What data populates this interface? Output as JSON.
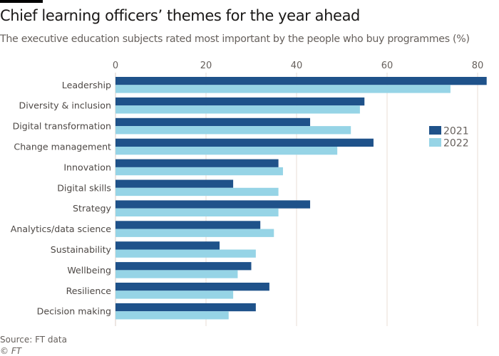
{
  "header": {
    "title": "Chief learning officers’ themes for the year ahead",
    "subtitle": "The executive education subjects rated most important by the people who buy programmes (%)"
  },
  "footer": {
    "source": "Source: FT data",
    "copyright": "© FT"
  },
  "colors": {
    "series_2021": "#1f528a",
    "series_2022": "#96d4e6",
    "gridline": "#e9dcd6",
    "text": "#66605c"
  },
  "chart_data": {
    "type": "bar",
    "orientation": "horizontal",
    "title": "Chief learning officers’ themes for the year ahead",
    "subtitle": "The executive education subjects rated most important by the people who buy programmes (%)",
    "xlabel": "",
    "ylabel": "",
    "xlim": [
      0,
      82
    ],
    "xticks": [
      0,
      20,
      40,
      60,
      80
    ],
    "xtick_labels": [
      "0",
      "20",
      "40",
      "60",
      "80"
    ],
    "grid": true,
    "legend_position": "right",
    "categories": [
      "Leadership",
      "Diversity & inclusion",
      "Digital transformation",
      "Change management",
      "Innovation",
      "Digital skills",
      "Strategy",
      "Analytics/data science",
      "Sustainability",
      "Wellbeing",
      "Resilience",
      "Decision making"
    ],
    "series": [
      {
        "name": "2021",
        "color": "#1f528a",
        "values": [
          82,
          55,
          43,
          57,
          36,
          26,
          43,
          32,
          23,
          30,
          34,
          31
        ]
      },
      {
        "name": "2022",
        "color": "#96d4e6",
        "values": [
          74,
          54,
          52,
          49,
          37,
          36,
          36,
          35,
          31,
          27,
          26,
          25
        ]
      }
    ],
    "source": "Source: FT data"
  }
}
